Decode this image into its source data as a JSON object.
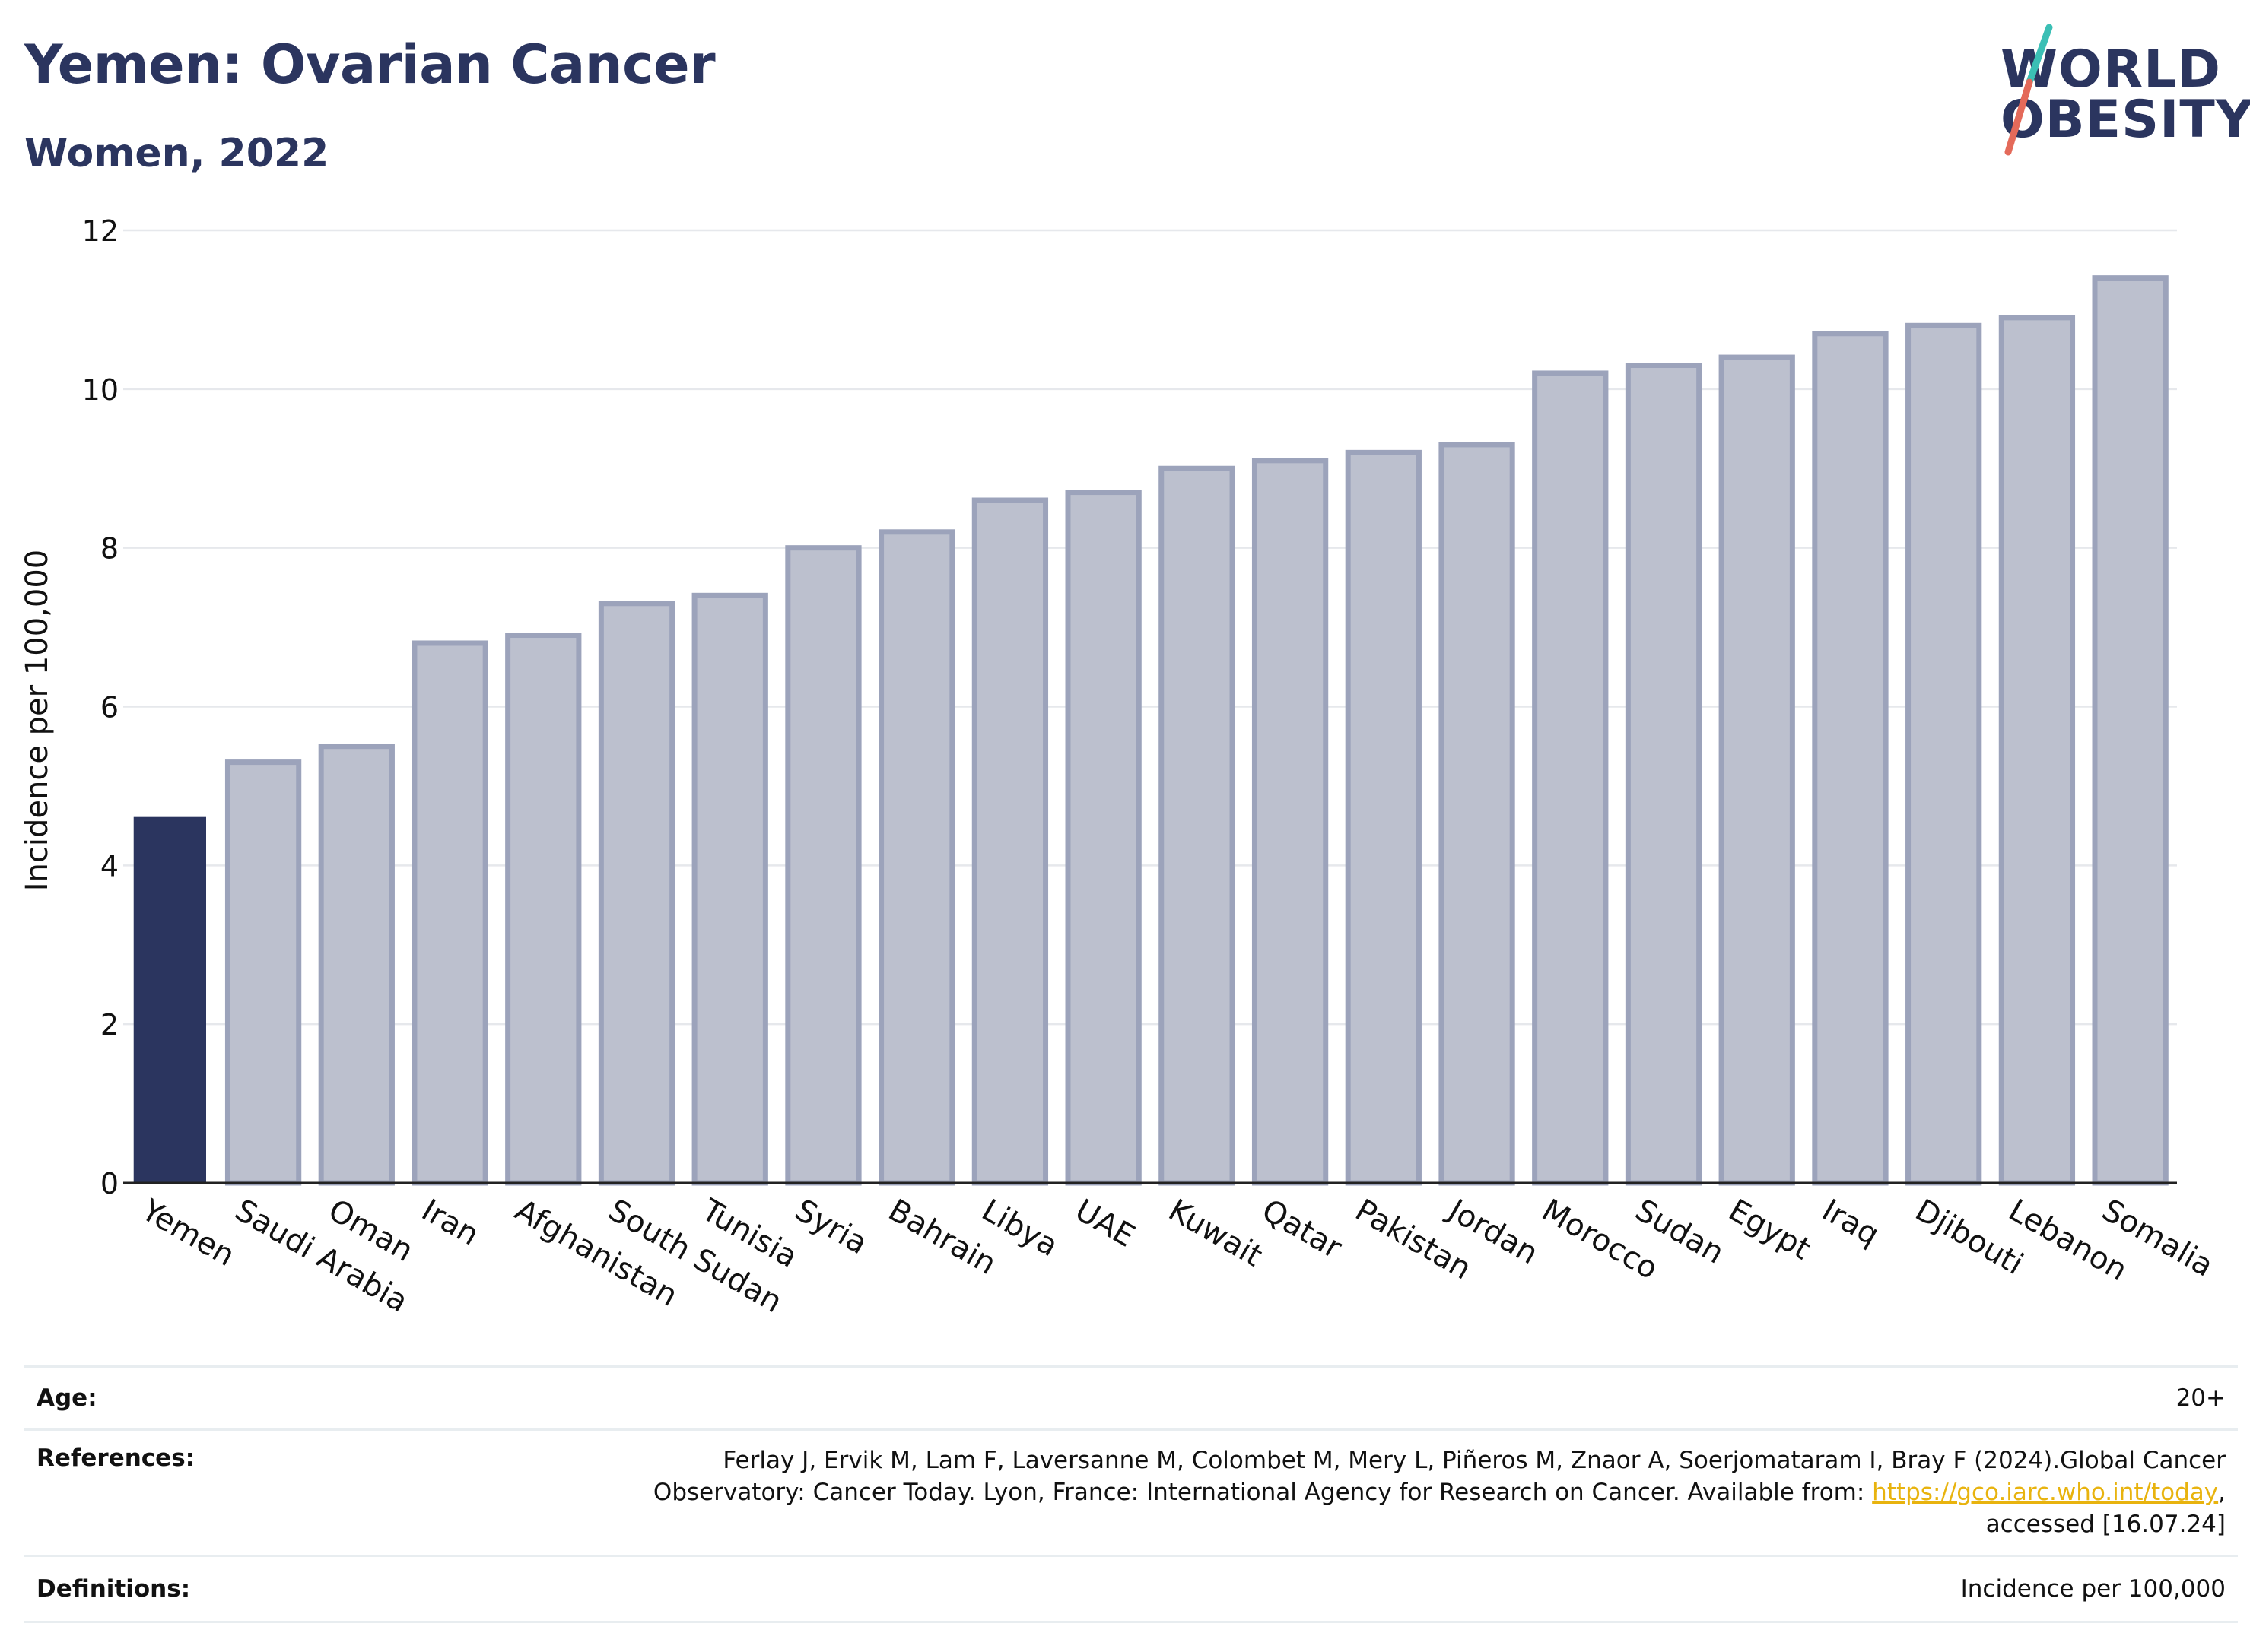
{
  "header": {
    "title": "Yemen: Ovarian Cancer",
    "subtitle": "Women, 2022"
  },
  "logo": {
    "line1": "WORLD",
    "line2": "OBESITY"
  },
  "colors": {
    "highlight": "#2b355f",
    "bar": "#bcc0ce",
    "bar_border": "#9ca3bb",
    "link": "#e8b30e",
    "logo_teal": "#3bbfb5",
    "logo_coral": "#e46a5a"
  },
  "chart_data": {
    "type": "bar",
    "title": "Yemen: Ovarian Cancer",
    "subtitle": "Women, 2022",
    "xlabel": "",
    "ylabel": "Incidence per 100,000",
    "ylim": [
      0,
      12
    ],
    "yticks": [
      0,
      2,
      4,
      6,
      8,
      10,
      12
    ],
    "grid": true,
    "highlight": "Yemen",
    "categories": [
      "Yemen",
      "Saudi Arabia",
      "Oman",
      "Iran",
      "Afghanistan",
      "South Sudan",
      "Tunisia",
      "Syria",
      "Bahrain",
      "Libya",
      "UAE",
      "Kuwait",
      "Qatar",
      "Pakistan",
      "Jordan",
      "Morocco",
      "Sudan",
      "Egypt",
      "Iraq",
      "Djibouti",
      "Lebanon",
      "Somalia"
    ],
    "values": [
      4.6,
      5.3,
      5.5,
      6.8,
      6.9,
      7.3,
      7.4,
      8.0,
      8.2,
      8.6,
      8.7,
      9.0,
      9.1,
      9.2,
      9.3,
      10.2,
      10.3,
      10.4,
      10.7,
      10.8,
      10.9,
      11.4
    ]
  },
  "info": {
    "age_label": "Age:",
    "age_value": "20+",
    "references_label": "References:",
    "references_line1": "Ferlay J, Ervik M, Lam F, Laversanne M, Colombet M, Mery L, Piñeros M, Znaor A, Soerjomataram I, Bray F (2024).Global Cancer",
    "references_line2_prefix": "Observatory: Cancer Today. Lyon, France: International Agency for Research on Cancer. Available from: ",
    "references_link": "https://gco.iarc.who.int/today",
    "references_line2_suffix": ",",
    "references_line3": "accessed [16.07.24]",
    "definitions_label": "Definitions:",
    "definitions_value": "Incidence per 100,000"
  }
}
